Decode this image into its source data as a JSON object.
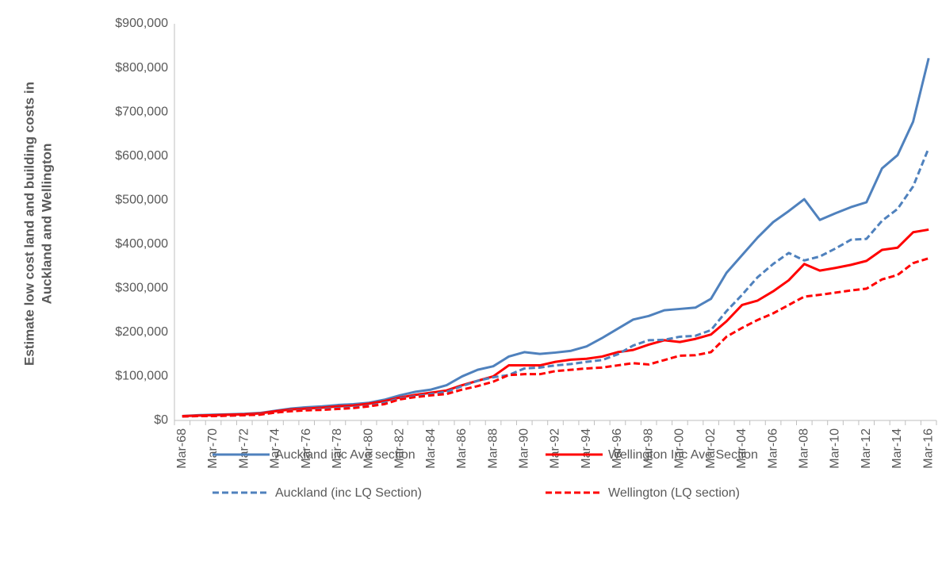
{
  "chart_data": {
    "type": "line",
    "ylabel": [
      "Estimate low cost land and building costs in",
      "Auckland and Wellington"
    ],
    "categories": [
      "Mar-68",
      null,
      "Mar-70",
      null,
      "Mar-72",
      null,
      "Mar-74",
      null,
      "Mar-76",
      null,
      "Mar-78",
      null,
      "Mar-80",
      null,
      "Mar-82",
      null,
      "Mar-84",
      null,
      "Mar-86",
      null,
      "Mar-88",
      null,
      "Mar-90",
      null,
      "Mar-92",
      null,
      "Mar-94",
      null,
      "Mar-96",
      null,
      "Mar-98",
      null,
      "Mar-00",
      null,
      "Mar-02",
      null,
      "Mar-04",
      null,
      "Mar-06",
      null,
      "Mar-08",
      null,
      "Mar-10",
      null,
      "Mar-12",
      null,
      "Mar-14",
      null,
      "Mar-16"
    ],
    "series": [
      {
        "name": "Auckland inc Ave section",
        "color": "#4f81bd",
        "dashed": false,
        "values": [
          10000,
          12000,
          13000,
          14000,
          15000,
          17000,
          22000,
          27000,
          30000,
          32000,
          35000,
          37000,
          40000,
          47000,
          57000,
          65000,
          70000,
          80000,
          100000,
          115000,
          123000,
          145000,
          155000,
          151000,
          154000,
          158000,
          168000,
          187000,
          208000,
          229000,
          237000,
          250000,
          253000,
          256000,
          276000,
          335000,
          375000,
          415000,
          450000,
          475000,
          502000,
          455000,
          470000,
          484000,
          495000,
          572000,
          602000,
          678000,
          822000
        ]
      },
      {
        "name": "Wellington Inc Ave Section",
        "color": "#ff0000",
        "dashed": false,
        "values": [
          10000,
          11000,
          12000,
          13000,
          14000,
          16000,
          21000,
          25000,
          27000,
          29000,
          32000,
          34000,
          38000,
          44000,
          52000,
          58000,
          63000,
          68000,
          80000,
          90000,
          100000,
          125000,
          125000,
          125000,
          133000,
          138000,
          140000,
          145000,
          155000,
          160000,
          172000,
          182000,
          178000,
          185000,
          195000,
          225000,
          262000,
          272000,
          293000,
          318000,
          355000,
          340000,
          346000,
          353000,
          362000,
          387000,
          392000,
          427000,
          433000
        ]
      },
      {
        "name": "Auckland (inc LQ Section)",
        "color": "#4f81bd",
        "dashed": true,
        "values": [
          9000,
          10000,
          10000,
          11000,
          12000,
          14000,
          18000,
          22000,
          24000,
          26000,
          28000,
          30000,
          33000,
          40000,
          50000,
          55000,
          60000,
          65000,
          78000,
          90000,
          98000,
          103000,
          118000,
          120000,
          125000,
          128000,
          133000,
          137000,
          150000,
          170000,
          182000,
          183000,
          190000,
          192000,
          205000,
          248000,
          285000,
          325000,
          355000,
          380000,
          363000,
          372000,
          390000,
          410000,
          412000,
          453000,
          480000,
          531000,
          618000
        ]
      },
      {
        "name": "Wellington (LQ section)",
        "color": "#ff0000",
        "dashed": true,
        "values": [
          9000,
          10000,
          10000,
          11000,
          12000,
          13000,
          18000,
          21000,
          23000,
          24000,
          26000,
          28000,
          32000,
          37000,
          48000,
          53000,
          57000,
          60000,
          70000,
          78000,
          88000,
          103000,
          105000,
          105000,
          112000,
          115000,
          118000,
          120000,
          125000,
          130000,
          127000,
          137000,
          147000,
          148000,
          155000,
          190000,
          210000,
          228000,
          243000,
          262000,
          281000,
          285000,
          290000,
          295000,
          299000,
          320000,
          330000,
          357000,
          368000
        ]
      }
    ],
    "ylim": [
      0,
      900000
    ],
    "yticks": [
      {
        "value": 0,
        "label": "$0"
      },
      {
        "value": 100000,
        "label": "$100,000"
      },
      {
        "value": 200000,
        "label": "$200,000"
      },
      {
        "value": 300000,
        "label": "$300,000"
      },
      {
        "value": 400000,
        "label": "$400,000"
      },
      {
        "value": 500000,
        "label": "$500,000"
      },
      {
        "value": 600000,
        "label": "$600,000"
      },
      {
        "value": 700000,
        "label": "$700,000"
      },
      {
        "value": 800000,
        "label": "$800,000"
      },
      {
        "value": 900000,
        "label": "$900,000"
      }
    ]
  }
}
